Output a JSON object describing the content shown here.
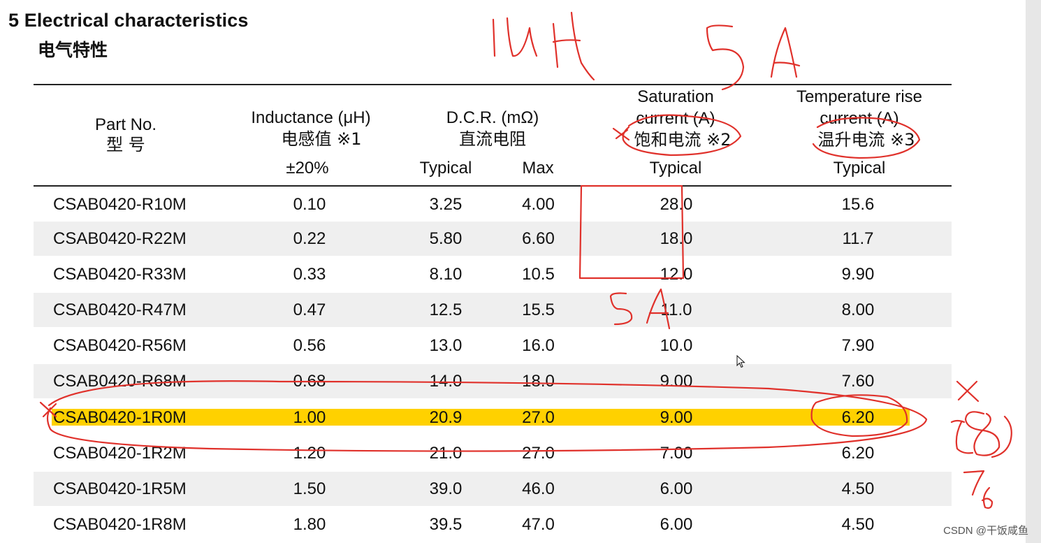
{
  "heading": {
    "title": "5 Electrical characteristics",
    "subtitle": "电气特性"
  },
  "table": {
    "headers": {
      "part": [
        "Part No.",
        "型 号"
      ],
      "inductance": [
        "Inductance (μH)",
        "电感值 ※1",
        "±20%"
      ],
      "dcr": [
        "D.C.R. (mΩ)",
        "直流电阻"
      ],
      "dcr_typical": "Typical",
      "dcr_max": "Max",
      "saturation": [
        "Saturation",
        "current (A)",
        "饱和电流 ※2",
        "Typical"
      ],
      "temperature": [
        "Temperature rise",
        "current (A)",
        "温升电流 ※3",
        "Typical"
      ]
    },
    "rows": [
      {
        "part": "CSAB0420-R10M",
        "inductance": "0.10",
        "dcr_typ": "3.25",
        "dcr_max": "4.00",
        "sat": "28.0",
        "temp": "15.6"
      },
      {
        "part": "CSAB0420-R22M",
        "inductance": "0.22",
        "dcr_typ": "5.80",
        "dcr_max": "6.60",
        "sat": "18.0",
        "temp": "11.7"
      },
      {
        "part": "CSAB0420-R33M",
        "inductance": "0.33",
        "dcr_typ": "8.10",
        "dcr_max": "10.5",
        "sat": "12.0",
        "temp": "9.90"
      },
      {
        "part": "CSAB0420-R47M",
        "inductance": "0.47",
        "dcr_typ": "12.5",
        "dcr_max": "15.5",
        "sat": "11.0",
        "temp": "8.00"
      },
      {
        "part": "CSAB0420-R56M",
        "inductance": "0.56",
        "dcr_typ": "13.0",
        "dcr_max": "16.0",
        "sat": "10.0",
        "temp": "7.90"
      },
      {
        "part": "CSAB0420-R68M",
        "inductance": "0.68",
        "dcr_typ": "14.0",
        "dcr_max": "18.0",
        "sat": "9.00",
        "temp": "7.60"
      },
      {
        "part": "CSAB0420-1R0M",
        "inductance": "1.00",
        "dcr_typ": "20.9",
        "dcr_max": "27.0",
        "sat": "9.00",
        "temp": "6.20"
      },
      {
        "part": "CSAB0420-1R2M",
        "inductance": "1.20",
        "dcr_typ": "21.0",
        "dcr_max": "27.0",
        "sat": "7.00",
        "temp": "6.20"
      },
      {
        "part": "CSAB0420-1R5M",
        "inductance": "1.50",
        "dcr_typ": "39.0",
        "dcr_max": "46.0",
        "sat": "6.00",
        "temp": "4.50"
      },
      {
        "part": "CSAB0420-1R8M",
        "inductance": "1.80",
        "dcr_typ": "39.5",
        "dcr_max": "47.0",
        "sat": "6.00",
        "temp": "4.50"
      }
    ],
    "highlight_color": "#ffd100",
    "alt_row_color": "#efefef"
  },
  "annotations": {
    "color": "#e0312b"
  },
  "watermark": "CSDN @干饭咸鱼"
}
